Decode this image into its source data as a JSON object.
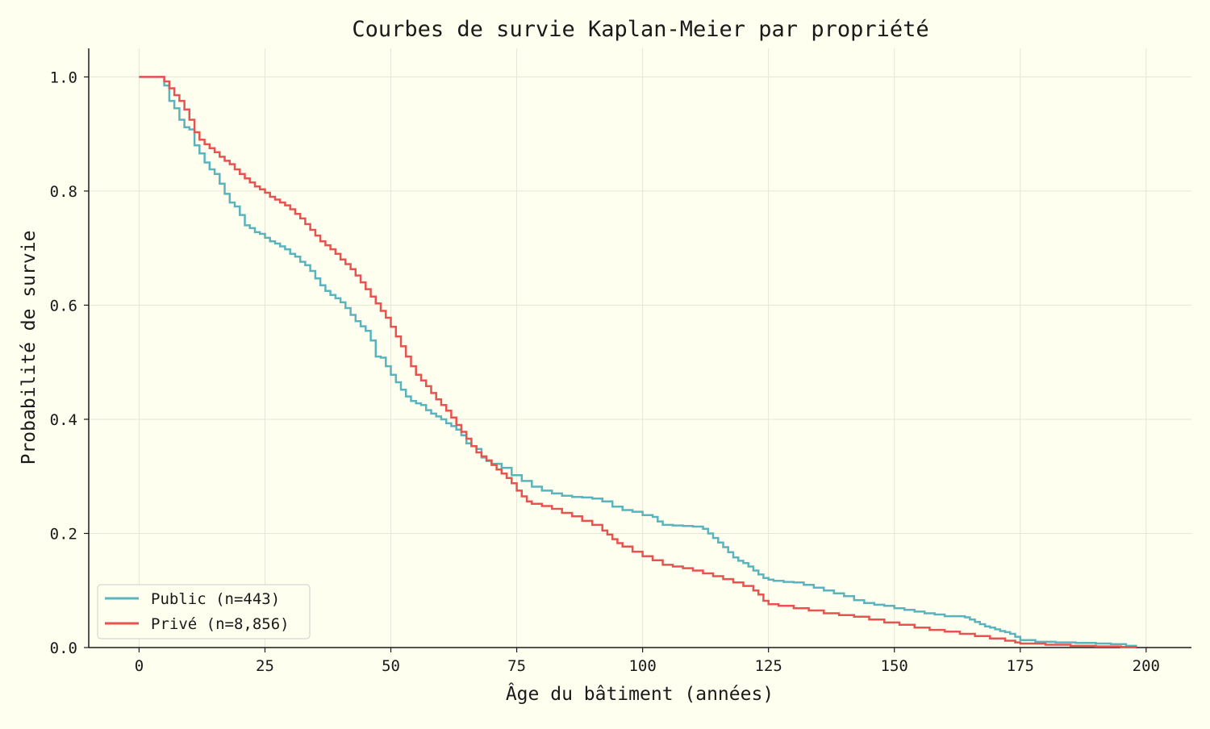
{
  "chart_data": {
    "type": "line",
    "step": true,
    "title": "Courbes de survie Kaplan-Meier par propriété",
    "xlabel": "Âge du bâtiment (années)",
    "ylabel": "Probabilité de survie",
    "xlim": [
      -10,
      209
    ],
    "ylim": [
      0,
      1.05
    ],
    "xticks": [
      0,
      25,
      50,
      75,
      100,
      125,
      150,
      175,
      200
    ],
    "xtick_labels": [
      "0",
      "25",
      "50",
      "75",
      "100",
      "125",
      "150",
      "175",
      "200"
    ],
    "yticks": [
      0.0,
      0.2,
      0.4,
      0.6,
      0.8,
      1.0
    ],
    "ytick_labels": [
      "0.0",
      "0.2",
      "0.4",
      "0.6",
      "0.8",
      "1.0"
    ],
    "grid": true,
    "legend_position": "lower-left",
    "series": [
      {
        "name": "Public (n=443)",
        "color": "#5ab4bd",
        "x": [
          0,
          5,
          6,
          7,
          8,
          9,
          10,
          11,
          12,
          13,
          14,
          15,
          16,
          17,
          18,
          19,
          20,
          21,
          22,
          23,
          24,
          25,
          26,
          27,
          28,
          29,
          30,
          31,
          32,
          33,
          34,
          35,
          36,
          37,
          38,
          39,
          40,
          41,
          42,
          43,
          44,
          45,
          46,
          47,
          48,
          49,
          50,
          51,
          52,
          53,
          54,
          55,
          56,
          57,
          58,
          59,
          60,
          61,
          62,
          63,
          64,
          65,
          66,
          67,
          68,
          69,
          70,
          72,
          74,
          76,
          78,
          80,
          82,
          84,
          86,
          88,
          90,
          92,
          94,
          96,
          98,
          100,
          102,
          103,
          104,
          106,
          108,
          110,
          112,
          113,
          114,
          115,
          116,
          117,
          118,
          119,
          120,
          121,
          122,
          123,
          124,
          125,
          126,
          128,
          130,
          132,
          134,
          136,
          138,
          140,
          142,
          144,
          146,
          148,
          150,
          152,
          154,
          156,
          158,
          160,
          162,
          164,
          165,
          166,
          167,
          168,
          169,
          170,
          171,
          172,
          173,
          174,
          175,
          178,
          182,
          186,
          190,
          193,
          196,
          198
        ],
        "y": [
          1.0,
          0.985,
          0.958,
          0.945,
          0.925,
          0.912,
          0.908,
          0.88,
          0.866,
          0.85,
          0.838,
          0.83,
          0.813,
          0.795,
          0.78,
          0.773,
          0.758,
          0.74,
          0.735,
          0.728,
          0.725,
          0.718,
          0.712,
          0.708,
          0.703,
          0.698,
          0.69,
          0.685,
          0.676,
          0.67,
          0.66,
          0.647,
          0.635,
          0.625,
          0.618,
          0.612,
          0.605,
          0.595,
          0.583,
          0.572,
          0.563,
          0.555,
          0.538,
          0.51,
          0.508,
          0.493,
          0.478,
          0.465,
          0.452,
          0.44,
          0.432,
          0.428,
          0.425,
          0.416,
          0.41,
          0.405,
          0.4,
          0.393,
          0.388,
          0.382,
          0.372,
          0.358,
          0.353,
          0.348,
          0.333,
          0.327,
          0.322,
          0.315,
          0.302,
          0.292,
          0.282,
          0.275,
          0.27,
          0.266,
          0.264,
          0.263,
          0.261,
          0.256,
          0.247,
          0.241,
          0.238,
          0.232,
          0.229,
          0.221,
          0.215,
          0.214,
          0.213,
          0.212,
          0.208,
          0.2,
          0.192,
          0.184,
          0.176,
          0.167,
          0.158,
          0.152,
          0.148,
          0.142,
          0.135,
          0.128,
          0.122,
          0.119,
          0.117,
          0.115,
          0.114,
          0.11,
          0.105,
          0.1,
          0.095,
          0.09,
          0.083,
          0.078,
          0.075,
          0.073,
          0.069,
          0.066,
          0.063,
          0.06,
          0.058,
          0.055,
          0.055,
          0.053,
          0.049,
          0.045,
          0.041,
          0.037,
          0.035,
          0.032,
          0.029,
          0.027,
          0.024,
          0.019,
          0.013,
          0.01,
          0.009,
          0.008,
          0.007,
          0.006,
          0.003,
          0.002
        ]
      },
      {
        "name": "Privé (n=8,856)",
        "color": "#e8524f",
        "x": [
          0,
          5,
          6,
          7,
          8,
          9,
          10,
          11,
          12,
          13,
          14,
          15,
          16,
          17,
          18,
          19,
          20,
          21,
          22,
          23,
          24,
          25,
          26,
          27,
          28,
          29,
          30,
          31,
          32,
          33,
          34,
          35,
          36,
          37,
          38,
          39,
          40,
          41,
          42,
          43,
          44,
          45,
          46,
          47,
          48,
          49,
          50,
          51,
          52,
          53,
          54,
          55,
          56,
          57,
          58,
          59,
          60,
          61,
          62,
          63,
          64,
          65,
          66,
          67,
          68,
          69,
          70,
          71,
          72,
          73,
          74,
          75,
          76,
          77,
          78,
          80,
          82,
          84,
          86,
          88,
          90,
          92,
          93,
          94,
          95,
          96,
          98,
          100,
          102,
          104,
          106,
          108,
          110,
          112,
          114,
          116,
          118,
          120,
          122,
          123,
          124,
          125,
          127,
          130,
          133,
          136,
          139,
          142,
          145,
          148,
          151,
          154,
          157,
          160,
          163,
          166,
          169,
          172,
          174,
          175,
          180,
          185,
          190,
          195,
          198
        ],
        "y": [
          1.0,
          0.992,
          0.98,
          0.968,
          0.958,
          0.943,
          0.925,
          0.903,
          0.89,
          0.882,
          0.875,
          0.868,
          0.86,
          0.853,
          0.847,
          0.838,
          0.83,
          0.822,
          0.815,
          0.808,
          0.803,
          0.797,
          0.79,
          0.785,
          0.78,
          0.775,
          0.768,
          0.76,
          0.752,
          0.742,
          0.732,
          0.722,
          0.712,
          0.705,
          0.698,
          0.69,
          0.68,
          0.672,
          0.663,
          0.652,
          0.64,
          0.628,
          0.615,
          0.603,
          0.59,
          0.578,
          0.562,
          0.545,
          0.528,
          0.51,
          0.493,
          0.478,
          0.468,
          0.458,
          0.446,
          0.435,
          0.425,
          0.415,
          0.403,
          0.39,
          0.378,
          0.366,
          0.353,
          0.342,
          0.335,
          0.328,
          0.32,
          0.312,
          0.305,
          0.297,
          0.288,
          0.275,
          0.265,
          0.256,
          0.252,
          0.248,
          0.243,
          0.236,
          0.23,
          0.222,
          0.215,
          0.205,
          0.198,
          0.19,
          0.183,
          0.177,
          0.168,
          0.16,
          0.153,
          0.145,
          0.142,
          0.139,
          0.135,
          0.13,
          0.125,
          0.12,
          0.114,
          0.108,
          0.1,
          0.093,
          0.082,
          0.076,
          0.073,
          0.069,
          0.065,
          0.06,
          0.057,
          0.054,
          0.049,
          0.044,
          0.04,
          0.035,
          0.031,
          0.028,
          0.024,
          0.02,
          0.016,
          0.012,
          0.009,
          0.007,
          0.005,
          0.003,
          0.002,
          0.001,
          0.0
        ]
      }
    ]
  }
}
